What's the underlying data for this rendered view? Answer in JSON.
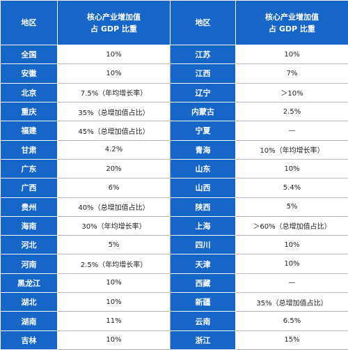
{
  "header": {
    "region": "地区",
    "value_line1": "核心产业增加值",
    "value_line2": "占 GDP 比重"
  },
  "rows": [
    {
      "left_region": "全国",
      "left_value": "10%",
      "right_region": "江苏",
      "right_value": "10%"
    },
    {
      "left_region": "安徽",
      "left_value": "10%",
      "right_region": "江西",
      "right_value": "7%"
    },
    {
      "left_region": "北京",
      "left_value": "7.5%（年均增长率）",
      "right_region": "辽宁",
      "right_value": "＞10%"
    },
    {
      "left_region": "重庆",
      "left_value": "35%（总增加值占比）",
      "right_region": "内蒙古",
      "right_value": "2.5%"
    },
    {
      "left_region": "福建",
      "left_value": "45%（总增加值占比）",
      "right_region": "宁夏",
      "right_value": "—"
    },
    {
      "left_region": "甘肃",
      "left_value": "4.2%",
      "right_region": "青海",
      "right_value": "10%（年均增长率）"
    },
    {
      "left_region": "广东",
      "left_value": "20%",
      "right_region": "山东",
      "right_value": "10%"
    },
    {
      "left_region": "广西",
      "left_value": "6%",
      "right_region": "山西",
      "right_value": "5.4%"
    },
    {
      "left_region": "贵州",
      "left_value": "40%（总增加值占比）",
      "right_region": "陕西",
      "right_value": "5%"
    },
    {
      "left_region": "海南",
      "left_value": "30%（年均增长率）",
      "right_region": "上海",
      "right_value": "＞60%（总增加值占比）"
    },
    {
      "left_region": "河北",
      "left_value": "5%",
      "right_region": "四川",
      "right_value": "10%"
    },
    {
      "left_region": "河南",
      "left_value": "2.5%（年均增长率）",
      "right_region": "天津",
      "right_value": "10%"
    },
    {
      "left_region": "黑龙江",
      "left_value": "10%",
      "right_region": "西藏",
      "right_value": "—"
    },
    {
      "left_region": "湖北",
      "left_value": "10%",
      "right_region": "新疆",
      "right_value": "35%（总增加值占比）"
    },
    {
      "left_region": "湖南",
      "left_value": "11%",
      "right_region": "云南",
      "right_value": "6.5%"
    },
    {
      "left_region": "吉林",
      "left_value": "10%",
      "right_region": "浙江",
      "right_value": "15%"
    }
  ]
}
